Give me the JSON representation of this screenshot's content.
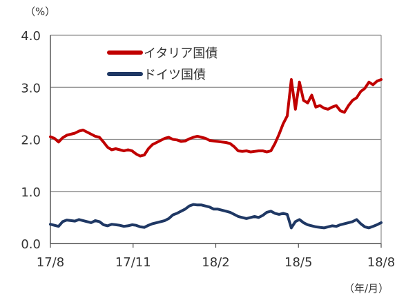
{
  "chart_data": {
    "type": "line",
    "unit_label": "（%）",
    "x_unit_label": "（年/月）",
    "x_tick_labels": [
      "17/8",
      "17/11",
      "18/2",
      "18/5",
      "18/8"
    ],
    "y_tick_labels": [
      "0.0",
      "1.0",
      "2.0",
      "3.0",
      "4.0"
    ],
    "ylim": [
      0,
      4
    ],
    "grid": true,
    "legend_position": "top-left",
    "series": [
      {
        "name": "イタリア国債",
        "color": "#c00000",
        "values": [
          2.05,
          2.02,
          1.95,
          2.03,
          2.08,
          2.1,
          2.12,
          2.16,
          2.18,
          2.14,
          2.1,
          2.06,
          2.04,
          1.95,
          1.85,
          1.8,
          1.82,
          1.8,
          1.78,
          1.8,
          1.78,
          1.72,
          1.68,
          1.7,
          1.82,
          1.9,
          1.94,
          1.98,
          2.02,
          2.04,
          2.0,
          1.99,
          1.96,
          1.97,
          2.01,
          2.04,
          2.06,
          2.04,
          2.02,
          1.98,
          1.97,
          1.96,
          1.95,
          1.94,
          1.92,
          1.86,
          1.78,
          1.77,
          1.78,
          1.76,
          1.77,
          1.78,
          1.78,
          1.76,
          1.78,
          1.92,
          2.1,
          2.3,
          2.45,
          3.15,
          2.58,
          3.1,
          2.75,
          2.7,
          2.85,
          2.62,
          2.65,
          2.6,
          2.58,
          2.62,
          2.65,
          2.55,
          2.52,
          2.65,
          2.75,
          2.8,
          2.92,
          2.98,
          3.1,
          3.05,
          3.12,
          3.15
        ]
      },
      {
        "name": "ドイツ国債",
        "color": "#1f3864",
        "values": [
          0.37,
          0.35,
          0.33,
          0.42,
          0.45,
          0.44,
          0.43,
          0.46,
          0.44,
          0.42,
          0.4,
          0.44,
          0.42,
          0.36,
          0.34,
          0.37,
          0.36,
          0.35,
          0.33,
          0.34,
          0.36,
          0.35,
          0.32,
          0.31,
          0.35,
          0.38,
          0.4,
          0.42,
          0.44,
          0.48,
          0.55,
          0.58,
          0.62,
          0.66,
          0.72,
          0.75,
          0.74,
          0.74,
          0.72,
          0.7,
          0.66,
          0.66,
          0.64,
          0.62,
          0.6,
          0.56,
          0.52,
          0.5,
          0.48,
          0.5,
          0.52,
          0.5,
          0.54,
          0.6,
          0.62,
          0.58,
          0.56,
          0.58,
          0.56,
          0.3,
          0.42,
          0.46,
          0.4,
          0.36,
          0.34,
          0.32,
          0.31,
          0.3,
          0.32,
          0.34,
          0.33,
          0.36,
          0.38,
          0.4,
          0.42,
          0.46,
          0.38,
          0.32,
          0.3,
          0.33,
          0.36,
          0.4
        ]
      }
    ]
  }
}
